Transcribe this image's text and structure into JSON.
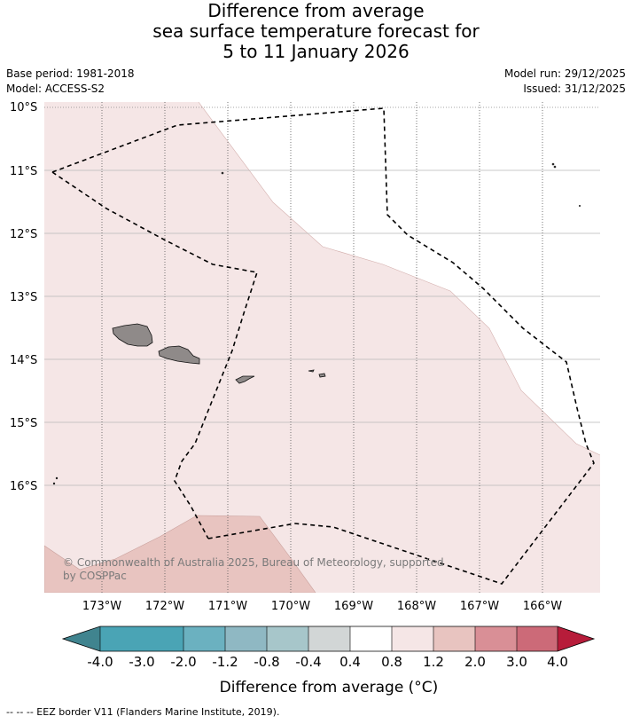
{
  "title": {
    "line1": "Difference from average",
    "line2": "sea surface temperature forecast for",
    "line3": "5 to 11 January 2026"
  },
  "meta": {
    "base_period": "Base period: 1981-2018",
    "model": "Model: ACCESS-S2",
    "model_run": "Model run: 29/12/2025",
    "issued": "Issued: 31/12/2025"
  },
  "map": {
    "lat_labels": [
      "10°S",
      "11°S",
      "12°S",
      "13°S",
      "14°S",
      "15°S",
      "16°S"
    ],
    "lon_labels": [
      "173°W",
      "172°W",
      "171°W",
      "170°W",
      "169°W",
      "168°W",
      "167°W",
      "166°W"
    ],
    "copyright_line1": "© Commonwealth of Australia 2025, Bureau of Meteorology, supported",
    "copyright_line2": "by COSPPac",
    "colors": {
      "band_04_08": "#f5e6e6",
      "band_08_12": "#e8c4c0",
      "land": "#8f8a89",
      "eez": "#000000"
    }
  },
  "colorbar": {
    "tick_labels": [
      "-4.0",
      "-3.0",
      "-2.0",
      "-1.2",
      "-0.8",
      "-0.4",
      "0.4",
      "0.8",
      "1.2",
      "2.0",
      "3.0",
      "4.0"
    ],
    "colors": [
      "#40848f",
      "#4aa4b5",
      "#6bb1c0",
      "#8fb8c3",
      "#a7c6ca",
      "#d2d6d6",
      "#ffffff",
      "#f5e6e6",
      "#e8c4c0",
      "#d98f96",
      "#cc6a78",
      "#c2475a",
      "#b71c3a"
    ],
    "title": "Difference from average (°C)"
  },
  "footer": {
    "legend": "-- -- -- EEZ border V11 (Flanders Marine Institute, 2019)."
  }
}
